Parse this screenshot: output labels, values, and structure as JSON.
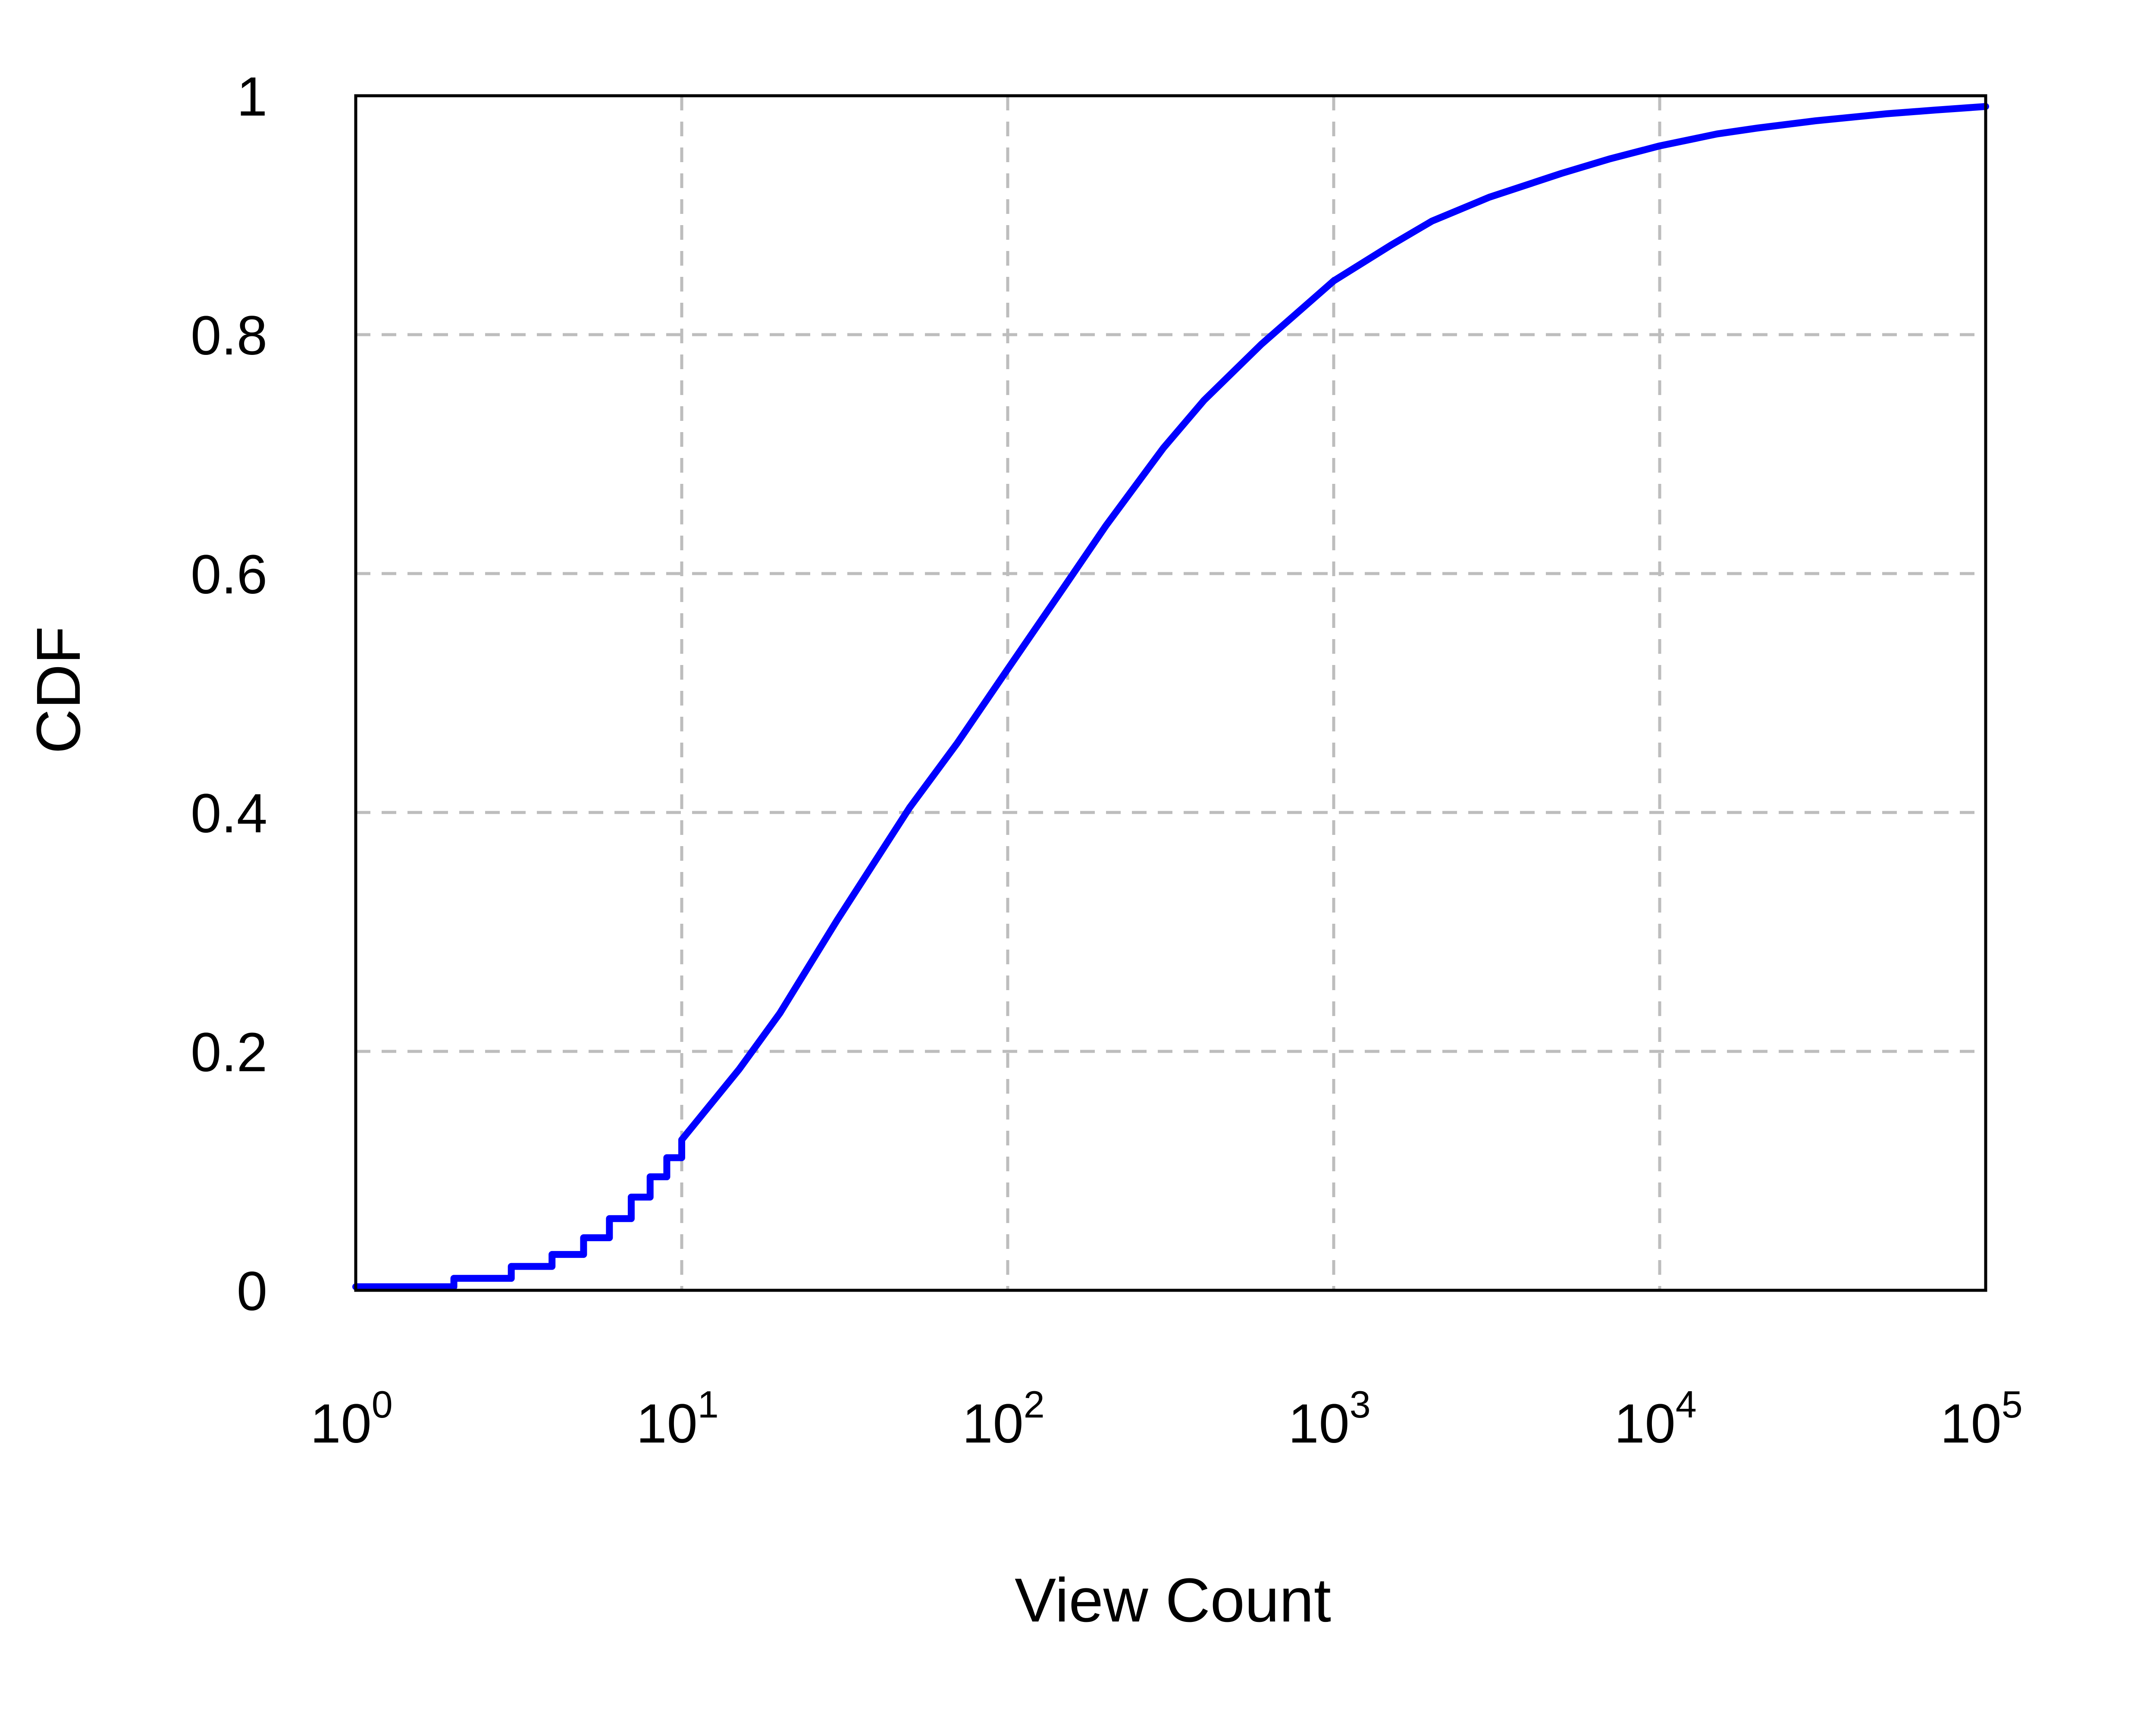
{
  "chart_data": {
    "type": "line",
    "title": "",
    "xlabel": "View Count",
    "ylabel": "CDF",
    "x_scale": "log",
    "xlim": [
      1,
      100000
    ],
    "ylim": [
      0,
      1
    ],
    "grid": true,
    "legend": "none",
    "x_ticks": [
      {
        "value": 1,
        "base": "10",
        "exp": "0"
      },
      {
        "value": 10,
        "base": "10",
        "exp": "1"
      },
      {
        "value": 100,
        "base": "10",
        "exp": "2"
      },
      {
        "value": 1000,
        "base": "10",
        "exp": "3"
      },
      {
        "value": 10000,
        "base": "10",
        "exp": "4"
      },
      {
        "value": 100000,
        "base": "10",
        "exp": "5"
      }
    ],
    "y_ticks": [
      {
        "value": 0,
        "label": "0"
      },
      {
        "value": 0.2,
        "label": "0.2"
      },
      {
        "value": 0.4,
        "label": "0.4"
      },
      {
        "value": 0.6,
        "label": "0.6"
      },
      {
        "value": 0.8,
        "label": "0.8"
      },
      {
        "value": 1,
        "label": "1"
      }
    ],
    "series": [
      {
        "color": "#0000ff",
        "step_points": [
          [
            1,
            0.003
          ],
          [
            2,
            0.01
          ],
          [
            3,
            0.02
          ],
          [
            4,
            0.03
          ],
          [
            5,
            0.044
          ],
          [
            6,
            0.06
          ],
          [
            7,
            0.078
          ],
          [
            8,
            0.095
          ],
          [
            9,
            0.111
          ],
          [
            10,
            0.126
          ]
        ],
        "points": [
          [
            10,
            0.126
          ],
          [
            15,
            0.185
          ],
          [
            20,
            0.232
          ],
          [
            30,
            0.31
          ],
          [
            50,
            0.404
          ],
          [
            70,
            0.458
          ],
          [
            100,
            0.52
          ],
          [
            150,
            0.59
          ],
          [
            200,
            0.64
          ],
          [
            300,
            0.705
          ],
          [
            400,
            0.745
          ],
          [
            600,
            0.792
          ],
          [
            1000,
            0.845
          ],
          [
            1500,
            0.875
          ],
          [
            2000,
            0.895
          ],
          [
            3000,
            0.915
          ],
          [
            5000,
            0.935
          ],
          [
            7000,
            0.947
          ],
          [
            10000,
            0.958
          ],
          [
            15000,
            0.968
          ],
          [
            20000,
            0.973
          ],
          [
            30000,
            0.979
          ],
          [
            50000,
            0.985
          ],
          [
            70000,
            0.988
          ],
          [
            100000,
            0.991
          ]
        ]
      }
    ]
  }
}
